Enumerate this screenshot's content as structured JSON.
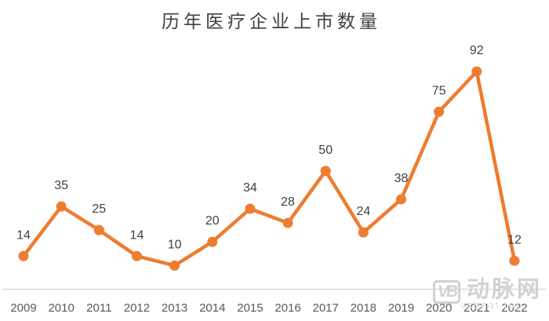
{
  "chart_data": {
    "type": "line",
    "title": "历年医疗企业上市数量",
    "categories": [
      "2009",
      "2010",
      "2011",
      "2012",
      "2013",
      "2014",
      "2015",
      "2016",
      "2017",
      "2018",
      "2019",
      "2020",
      "2021",
      "2022"
    ],
    "values": [
      14,
      35,
      25,
      14,
      10,
      20,
      34,
      28,
      50,
      24,
      38,
      75,
      92,
      12
    ],
    "xlabel": "",
    "ylabel": "",
    "ylim": [
      0,
      100
    ],
    "grid": false,
    "legend": "none",
    "data_labels": true,
    "colors": {
      "line": "#ED7D31",
      "marker": "#ED7D31",
      "data_label": "#404040",
      "axis_text": "#595959",
      "axis_line": "#D9D9D9",
      "title": "#404040"
    }
  },
  "watermark": {
    "logo": "VB",
    "name": "动脉网",
    "site": "vcbeat.top",
    "color": "#d2d2d2"
  }
}
